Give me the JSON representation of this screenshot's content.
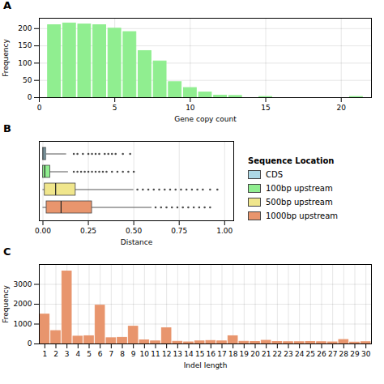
{
  "chart_data": [
    {
      "type": "bar",
      "title": "A",
      "x": [
        1,
        2,
        3,
        4,
        5,
        6,
        7,
        8,
        9,
        10,
        11,
        12,
        13,
        14,
        15,
        16,
        17,
        18,
        19,
        20,
        21
      ],
      "values": [
        210,
        215,
        212,
        210,
        200,
        190,
        135,
        105,
        45,
        28,
        15,
        6,
        5,
        0,
        2,
        0,
        0,
        0,
        0,
        0,
        2
      ],
      "color": "#90EE90",
      "xlabel": "Gene copy count",
      "ylabel": "Frequency",
      "xlim": [
        0,
        22
      ],
      "ylim": [
        0,
        230
      ],
      "xticks": [
        0,
        5,
        10,
        15,
        20
      ],
      "yticks": [
        0,
        50,
        100,
        150,
        200
      ],
      "grid": true
    },
    {
      "type": "box",
      "title": "B",
      "xlabel": "Distance",
      "xlim": [
        -0.02,
        1.05
      ],
      "xticks": [
        {
          "value": 0,
          "label": "0.00"
        },
        {
          "value": 0.25,
          "label": "0.25"
        },
        {
          "value": 0.5,
          "label": "0.50"
        },
        {
          "value": 0.75,
          "label": "0.75"
        },
        {
          "value": 1,
          "label": "1.00"
        }
      ],
      "grid": true,
      "tick_labels": "x",
      "legend": "right",
      "legend_title": "Sequence Location",
      "series": [
        {
          "name": "CDS",
          "color": "#ADD8E6",
          "q1": 0.0,
          "median": 0.005,
          "q3": 0.018,
          "whisker_lo": 0.0,
          "whisker_hi": 0.13,
          "outliers": [
            0.17,
            0.19,
            0.22,
            0.25,
            0.27,
            0.29,
            0.31,
            0.34,
            0.36,
            0.38,
            0.4,
            0.44,
            0.48
          ]
        },
        {
          "name": "100bp upstream",
          "color": "#90EE90",
          "q1": 0.0,
          "median": 0.01,
          "q3": 0.04,
          "whisker_lo": 0.0,
          "whisker_hi": 0.14,
          "outliers": [
            0.17,
            0.19,
            0.21,
            0.23,
            0.25,
            0.27,
            0.29,
            0.31,
            0.33,
            0.35,
            0.38,
            0.41,
            0.44,
            0.47,
            0.5
          ]
        },
        {
          "name": "500bp upstream",
          "color": "#F0E68C",
          "q1": 0.01,
          "median": 0.07,
          "q3": 0.18,
          "whisker_lo": 0.0,
          "whisker_hi": 0.5,
          "outliers": [
            0.52,
            0.55,
            0.58,
            0.61,
            0.64,
            0.67,
            0.7,
            0.73,
            0.76,
            0.79,
            0.82,
            0.85,
            0.88,
            0.92,
            0.96
          ]
        },
        {
          "name": "1000bp upstream",
          "color": "#E8956D",
          "q1": 0.02,
          "median": 0.1,
          "q3": 0.27,
          "whisker_lo": 0.0,
          "whisker_hi": 0.6,
          "outliers": [
            0.62,
            0.65,
            0.68,
            0.71,
            0.74,
            0.77,
            0.8,
            0.83,
            0.86,
            0.89,
            0.92
          ]
        }
      ]
    },
    {
      "type": "bar",
      "title": "C",
      "x": [
        1,
        2,
        3,
        4,
        5,
        6,
        7,
        8,
        9,
        10,
        11,
        12,
        13,
        14,
        15,
        16,
        17,
        18,
        19,
        20,
        21,
        22,
        23,
        24,
        25,
        26,
        27,
        28,
        29,
        30
      ],
      "values": [
        1480,
        650,
        3650,
        370,
        390,
        1930,
        290,
        310,
        870,
        180,
        130,
        790,
        110,
        80,
        130,
        150,
        130,
        390,
        110,
        100,
        160,
        100,
        90,
        90,
        100,
        90,
        80,
        200,
        70,
        90
      ],
      "color": "#E8956D",
      "xlabel": "Indel length",
      "ylabel": "Frequency",
      "xlim": [
        0.5,
        30.5
      ],
      "ylim": [
        0,
        4000
      ],
      "xticks": [
        1,
        2,
        3,
        4,
        5,
        6,
        7,
        8,
        9,
        10,
        11,
        12,
        13,
        14,
        15,
        16,
        17,
        18,
        19,
        20,
        21,
        22,
        23,
        24,
        25,
        26,
        27,
        28,
        29,
        30
      ],
      "yticks": [
        0,
        1000,
        2000,
        3000
      ],
      "grid": true
    }
  ]
}
